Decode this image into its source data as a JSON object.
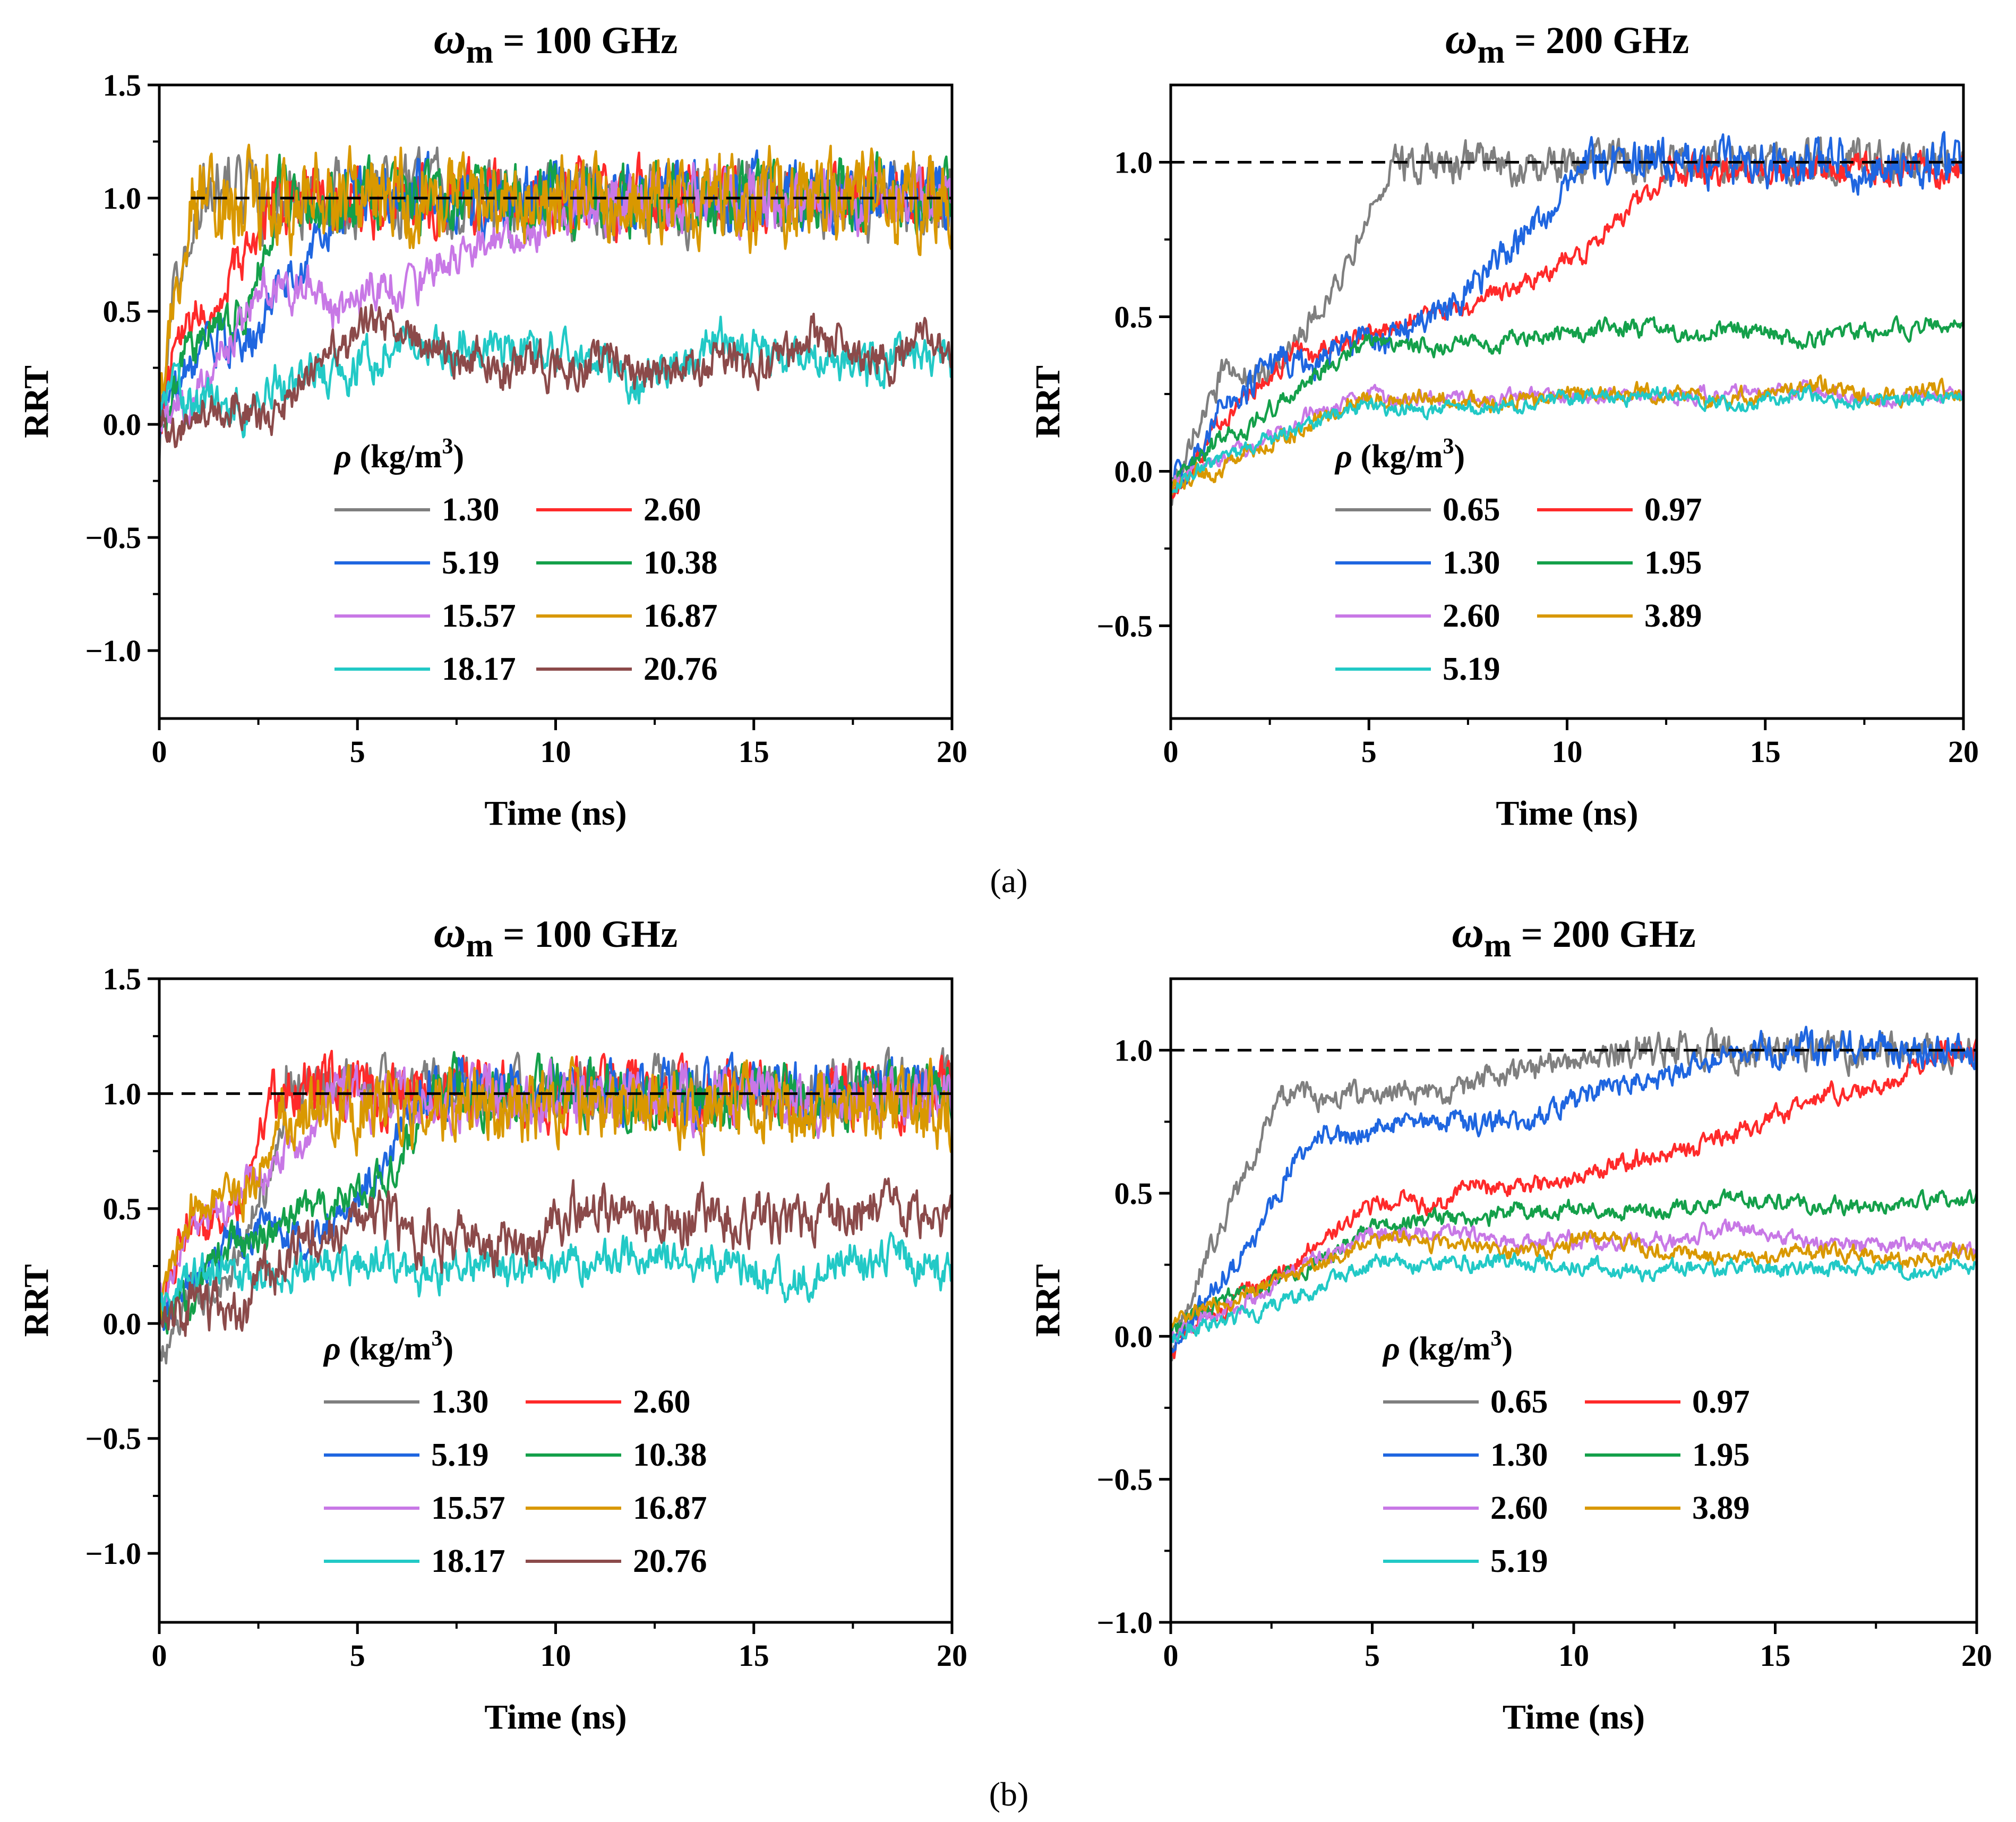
{
  "figure": {
    "panel_labels": [
      "(a)",
      "(b)"
    ]
  },
  "chart_data": [
    {
      "id": "a-100",
      "panel": "(a)",
      "type": "line",
      "title_symbol": "ω",
      "title_sub": "m",
      "title_rest": " = 100 GHz",
      "xlabel": "Time (ns)",
      "ylabel": "RRT",
      "xlim": [
        0,
        20
      ],
      "ylim": [
        -1.3,
        1.5
      ],
      "xticks": [
        0,
        5,
        10,
        15,
        20
      ],
      "xtick_labels": [
        "0",
        "5",
        "10",
        "15",
        "20"
      ],
      "yticks": [
        -1.0,
        -0.5,
        0.0,
        0.5,
        1.0,
        1.5
      ],
      "ytick_labels": [
        "−1.0",
        "−0.5",
        "0.0",
        "0.5",
        "1.0",
        "1.5"
      ],
      "reference_line": {
        "y": 1.0,
        "x_start": 0.8,
        "x_end": 20,
        "style": "dashed",
        "color": "#000000"
      },
      "legend_title_symbol": "ρ",
      "legend_title": " (kg/m",
      "legend_title_sup": "3",
      "legend_title_end": ")",
      "series": [
        {
          "name": "1.30",
          "color": "#7f7f7f",
          "t_sat": 1.0,
          "plateau": 1.0,
          "amp": 0.13,
          "initial": -0.1,
          "early": 0.6,
          "seed": 11
        },
        {
          "name": "2.60",
          "color": "#ff2a2a",
          "t_sat": 2.6,
          "plateau": 1.0,
          "amp": 0.12,
          "initial": 0.0,
          "early": 0.45,
          "seed": 12
        },
        {
          "name": "5.19",
          "color": "#1f66e0",
          "t_sat": 4.5,
          "plateau": 1.0,
          "amp": 0.12,
          "initial": 0.0,
          "early": 0.4,
          "seed": 13
        },
        {
          "name": "10.38",
          "color": "#14a04a",
          "t_sat": 3.0,
          "plateau": 1.0,
          "amp": 0.12,
          "initial": 0.0,
          "early": 0.45,
          "seed": 14
        },
        {
          "name": "15.57",
          "color": "#c878e6",
          "t_sat": 10.5,
          "plateau": 1.0,
          "amp": 0.11,
          "initial": 0.0,
          "early": 0.55,
          "seed": 15
        },
        {
          "name": "16.87",
          "color": "#d99800",
          "t_sat": 0.8,
          "plateau": 1.0,
          "amp": 0.16,
          "initial": 0.0,
          "early": 0.6,
          "seed": 16
        },
        {
          "name": "18.17",
          "color": "#22c9c6",
          "t_sat": null,
          "plateau": 0.3,
          "amp": 0.1,
          "initial": 0.1,
          "early": 0.25,
          "seed": 17
        },
        {
          "name": "20.76",
          "color": "#8b4a4a",
          "t_sat": null,
          "plateau": 0.33,
          "amp": 0.1,
          "initial": 0.0,
          "early": 0.3,
          "seed": 18
        }
      ]
    },
    {
      "id": "a-200",
      "panel": "(a)",
      "type": "line",
      "title_symbol": "ω",
      "title_sub": "m",
      "title_rest": " = 200 GHz",
      "xlabel": "Time (ns)",
      "ylabel": "RRT",
      "xlim": [
        0,
        20
      ],
      "ylim": [
        -0.8,
        1.25
      ],
      "xticks": [
        0,
        5,
        10,
        15,
        20
      ],
      "xtick_labels": [
        "0",
        "5",
        "10",
        "15",
        "20"
      ],
      "yticks": [
        -0.5,
        0.0,
        0.5,
        1.0
      ],
      "ytick_labels": [
        "−0.5",
        "0.0",
        "0.5",
        "1.0"
      ],
      "reference_line": {
        "y": 1.0,
        "x_start": 0,
        "x_end": 20,
        "style": "dashed",
        "color": "#000000"
      },
      "legend_title_symbol": "ρ",
      "legend_title": " (kg/m",
      "legend_title_sup": "3",
      "legend_title_end": ")",
      "series": [
        {
          "name": "0.65",
          "color": "#7f7f7f",
          "t_sat": 5.6,
          "plateau": 1.0,
          "amp": 0.05,
          "initial": -0.1,
          "early": 0.3,
          "seed": 21
        },
        {
          "name": "0.97",
          "color": "#ff2a2a",
          "t_sat": 12.5,
          "plateau": 0.97,
          "amp": 0.04,
          "initial": -0.08,
          "early": 0.45,
          "seed": 22
        },
        {
          "name": "1.30",
          "color": "#1f66e0",
          "t_sat": 10.4,
          "plateau": 1.0,
          "amp": 0.06,
          "initial": -0.05,
          "early": 0.32,
          "seed": 23
        },
        {
          "name": "1.95",
          "color": "#14a04a",
          "t_sat": null,
          "plateau": 0.45,
          "amp": 0.03,
          "initial": -0.05,
          "early": 0.45,
          "seed": 24
        },
        {
          "name": "2.60",
          "color": "#c878e6",
          "t_sat": null,
          "plateau": 0.25,
          "amp": 0.025,
          "initial": -0.05,
          "early": 0.22,
          "seed": 25
        },
        {
          "name": "3.89",
          "color": "#d99800",
          "t_sat": null,
          "plateau": 0.24,
          "amp": 0.03,
          "initial": -0.05,
          "early": 0.22,
          "seed": 26
        },
        {
          "name": "5.19",
          "color": "#22c9c6",
          "t_sat": null,
          "plateau": 0.22,
          "amp": 0.025,
          "initial": -0.05,
          "early": 0.24,
          "seed": 27
        }
      ]
    },
    {
      "id": "b-100",
      "panel": "(b)",
      "type": "line",
      "title_symbol": "ω",
      "title_sub": "m",
      "title_rest": " = 100 GHz",
      "xlabel": "Time (ns)",
      "ylabel": "RRT",
      "xlim": [
        0,
        20
      ],
      "ylim": [
        -1.3,
        1.5
      ],
      "xticks": [
        0,
        5,
        10,
        15,
        20
      ],
      "xtick_labels": [
        "0",
        "5",
        "10",
        "15",
        "20"
      ],
      "yticks": [
        -1.0,
        -0.5,
        0.0,
        0.5,
        1.0,
        1.5
      ],
      "ytick_labels": [
        "−1.0",
        "−0.5",
        "0.0",
        "0.5",
        "1.0",
        "1.5"
      ],
      "reference_line": {
        "y": 1.0,
        "x_start": 0,
        "x_end": 20,
        "style": "dashed",
        "color": "#000000"
      },
      "legend_title_symbol": "ρ",
      "legend_title": " (kg/m",
      "legend_title_sup": "3",
      "legend_title_end": ")",
      "series": [
        {
          "name": "1.30",
          "color": "#7f7f7f",
          "t_sat": 3.2,
          "plateau": 1.02,
          "amp": 0.1,
          "initial": -0.08,
          "early": 0.2,
          "seed": 31
        },
        {
          "name": "2.60",
          "color": "#ff2a2a",
          "t_sat": 2.8,
          "plateau": 1.0,
          "amp": 0.11,
          "initial": 0.05,
          "early": 0.5,
          "seed": 32
        },
        {
          "name": "5.19",
          "color": "#1f66e0",
          "t_sat": 6.5,
          "plateau": 1.0,
          "amp": 0.1,
          "initial": 0.0,
          "early": 0.4,
          "seed": 33
        },
        {
          "name": "10.38",
          "color": "#14a04a",
          "t_sat": 7.0,
          "plateau": 1.0,
          "amp": 0.1,
          "initial": 0.0,
          "early": 0.4,
          "seed": 34
        },
        {
          "name": "15.57",
          "color": "#c878e6",
          "t_sat": 4.0,
          "plateau": 0.98,
          "amp": 0.1,
          "initial": 0.1,
          "early": 0.5,
          "seed": 35
        },
        {
          "name": "16.87",
          "color": "#d99800",
          "t_sat": 3.0,
          "plateau": 0.95,
          "amp": 0.13,
          "initial": 0.0,
          "early": 0.5,
          "seed": 36
        },
        {
          "name": "18.17",
          "color": "#22c9c6",
          "t_sat": null,
          "plateau": 0.28,
          "amp": 0.09,
          "initial": 0.1,
          "early": 0.35,
          "seed": 37
        },
        {
          "name": "20.76",
          "color": "#8b4a4a",
          "t_sat": null,
          "plateau": 0.4,
          "amp": 0.12,
          "initial": 0.0,
          "early": 0.5,
          "seed": 38
        }
      ]
    },
    {
      "id": "b-200",
      "panel": "(b)",
      "type": "line",
      "title_symbol": "ω",
      "title_sub": "m",
      "title_rest": " = 200 GHz",
      "xlabel": "Time (ns)",
      "ylabel": "RRT",
      "xlim": [
        0,
        20
      ],
      "ylim": [
        -1.0,
        1.25
      ],
      "xticks": [
        0,
        5,
        10,
        15,
        20
      ],
      "xtick_labels": [
        "0",
        "5",
        "10",
        "15",
        "20"
      ],
      "yticks": [
        -1.0,
        -0.5,
        0.0,
        0.5,
        1.0
      ],
      "ytick_labels": [
        "−1.0",
        "−0.5",
        "0.0",
        "0.5",
        "1.0"
      ],
      "reference_line": {
        "y": 1.0,
        "x_start": 0,
        "x_end": 20,
        "style": "dashed",
        "color": "#000000"
      },
      "legend_title_symbol": "ρ",
      "legend_title": " (kg/m",
      "legend_title_sup": "3",
      "legend_title_end": ")",
      "series": [
        {
          "name": "0.65",
          "color": "#7f7f7f",
          "t_sat": 11.0,
          "plateau": 1.0,
          "amp": 0.05,
          "initial": -0.05,
          "early": 0.85,
          "seed": 41
        },
        {
          "name": "0.97",
          "color": "#ff2a2a",
          "t_sat": 19.0,
          "plateau": 1.0,
          "amp": 0.04,
          "initial": -0.05,
          "early": 0.5,
          "seed": 42
        },
        {
          "name": "1.30",
          "color": "#1f66e0",
          "t_sat": 14.5,
          "plateau": 1.0,
          "amp": 0.05,
          "initial": -0.05,
          "early": 0.7,
          "seed": 43
        },
        {
          "name": "1.95",
          "color": "#14a04a",
          "t_sat": null,
          "plateau": 0.45,
          "amp": 0.03,
          "initial": 0.0,
          "early": 0.4,
          "seed": 44
        },
        {
          "name": "2.60",
          "color": "#c878e6",
          "t_sat": null,
          "plateau": 0.33,
          "amp": 0.03,
          "initial": 0.0,
          "early": 0.35,
          "seed": 45
        },
        {
          "name": "3.89",
          "color": "#d99800",
          "t_sat": null,
          "plateau": 0.3,
          "amp": 0.03,
          "initial": 0.05,
          "early": 0.42,
          "seed": 46
        },
        {
          "name": "5.19",
          "color": "#22c9c6",
          "t_sat": null,
          "plateau": 0.25,
          "amp": 0.03,
          "initial": 0.0,
          "early": 0.25,
          "seed": 47
        }
      ]
    }
  ]
}
